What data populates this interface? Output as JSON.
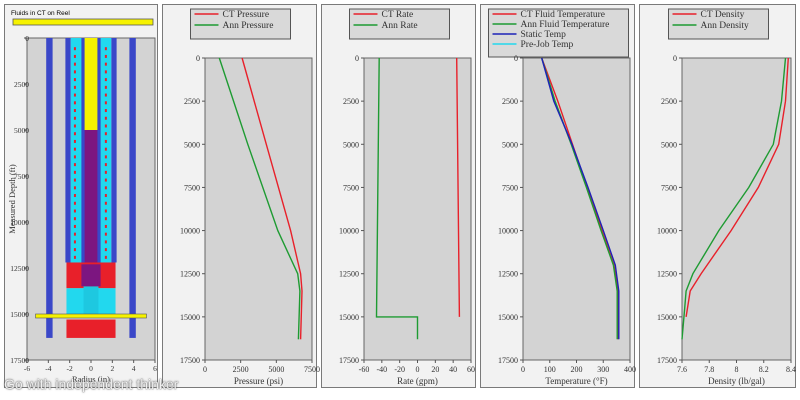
{
  "colors": {
    "plot_bg": "#d3d3d3",
    "panel_bg": "#f2f2f2",
    "red": "#e8202a",
    "green": "#1e9b32",
    "blue": "#1d22b8",
    "cyan": "#22d8ee",
    "yellow": "#f6f200",
    "purple": "#7c1680",
    "tubing_blue": "#3a47c8"
  },
  "reel": {
    "label": "Fluids in CT on Reel"
  },
  "wellbore": {
    "ylabel": "Measured Depth (ft)",
    "xlabel": "Radius (in)",
    "xlim": [
      -6,
      6
    ],
    "ylim": [
      0,
      17500
    ],
    "xticks": [
      "-6",
      "-4",
      "-2",
      "0",
      "2",
      "4",
      "6"
    ],
    "yticks": [
      "0",
      "2500",
      "5000",
      "7500",
      "10000",
      "12500",
      "15000",
      "17500"
    ]
  },
  "chart_data": [
    {
      "type": "line",
      "xlabel": "Pressure (psi)",
      "xlim": [
        0,
        7500
      ],
      "ylim": [
        0,
        17500
      ],
      "xticks": [
        "0",
        "2500",
        "5000",
        "7500"
      ],
      "yticks": [
        "0",
        "2500",
        "5000",
        "7500",
        "10000",
        "12500",
        "15000",
        "17500"
      ],
      "legend": "top",
      "series": [
        {
          "name": "CT Pressure",
          "color": "#e8202a",
          "points": [
            [
              2600,
              0
            ],
            [
              4300,
              5000
            ],
            [
              6000,
              10000
            ],
            [
              6700,
              12500
            ],
            [
              6800,
              13500
            ],
            [
              6700,
              16300
            ]
          ]
        },
        {
          "name": "Ann Pressure",
          "color": "#1e9b32",
          "points": [
            [
              1000,
              0
            ],
            [
              3000,
              5000
            ],
            [
              5100,
              10000
            ],
            [
              6500,
              12500
            ],
            [
              6650,
              13500
            ],
            [
              6550,
              16300
            ]
          ]
        }
      ]
    },
    {
      "type": "line",
      "xlabel": "Rate (gpm)",
      "xlim": [
        -60,
        60
      ],
      "ylim": [
        0,
        17500
      ],
      "xticks": [
        "-60",
        "-40",
        "-20",
        "0",
        "20",
        "40",
        "60"
      ],
      "yticks": [
        "0",
        "2500",
        "5000",
        "7500",
        "10000",
        "12500",
        "15000",
        "17500"
      ],
      "legend": "top",
      "series": [
        {
          "name": "CT Rate",
          "color": "#e8202a",
          "points": [
            [
              44,
              0
            ],
            [
              45,
              5000
            ],
            [
              46,
              10000
            ],
            [
              47,
              15000
            ]
          ]
        },
        {
          "name": "Ann Rate",
          "color": "#1e9b32",
          "points": [
            [
              -43,
              0
            ],
            [
              -44,
              5000
            ],
            [
              -45,
              10000
            ],
            [
              -46,
              15000
            ],
            [
              0,
              15000
            ],
            [
              0,
              16300
            ]
          ]
        }
      ]
    },
    {
      "type": "line",
      "xlabel": "Temperature (°F)",
      "xlim": [
        0,
        400
      ],
      "ylim": [
        0,
        17500
      ],
      "xticks": [
        "0",
        "100",
        "200",
        "300",
        "400"
      ],
      "yticks": [
        "0",
        "2500",
        "5000",
        "7500",
        "10000",
        "12500",
        "15000",
        "17500"
      ],
      "legend": "top",
      "series": [
        {
          "name": "CT Fluid Temperature",
          "color": "#e8202a",
          "points": [
            [
              70,
              0
            ],
            [
              130,
              2500
            ],
            [
              185,
              5000
            ],
            [
              240,
              7500
            ],
            [
              295,
              10000
            ],
            [
              340,
              12000
            ],
            [
              355,
              13500
            ],
            [
              355,
              16300
            ]
          ]
        },
        {
          "name": "Ann Fluid Temperature",
          "color": "#1e9b32",
          "points": [
            [
              70,
              0
            ],
            [
              120,
              2500
            ],
            [
              180,
              5000
            ],
            [
              237,
              7500
            ],
            [
              292,
              10000
            ],
            [
              338,
              12000
            ],
            [
              352,
              13500
            ],
            [
              352,
              16300
            ]
          ]
        },
        {
          "name": "Static Temp",
          "color": "#1d22b8",
          "points": [
            [
              70,
              0
            ],
            [
              115,
              2500
            ],
            [
              183,
              5000
            ],
            [
              243,
              7500
            ],
            [
              300,
              10000
            ],
            [
              345,
              12000
            ],
            [
              358,
              13500
            ],
            [
              358,
              16300
            ]
          ]
        },
        {
          "name": "Pre-Job Temp",
          "color": "#22d8ee",
          "points": []
        }
      ]
    },
    {
      "type": "line",
      "xlabel": "Density (lb/gal)",
      "xlim": [
        7.6,
        8.4
      ],
      "ylim": [
        0,
        17500
      ],
      "xticks": [
        "7.6",
        "7.8",
        "8",
        "8.2",
        "8.4"
      ],
      "yticks": [
        "0",
        "2500",
        "5000",
        "7500",
        "10000",
        "12500",
        "15000",
        "17500"
      ],
      "legend": "top",
      "series": [
        {
          "name": "CT Density",
          "color": "#e8202a",
          "points": [
            [
              8.38,
              0
            ],
            [
              8.36,
              2500
            ],
            [
              8.31,
              5000
            ],
            [
              8.16,
              7500
            ],
            [
              7.96,
              10000
            ],
            [
              7.74,
              12500
            ],
            [
              7.66,
              13500
            ],
            [
              7.63,
              15000
            ]
          ]
        },
        {
          "name": "Ann Density",
          "color": "#1e9b32",
          "points": [
            [
              8.36,
              0
            ],
            [
              8.33,
              2500
            ],
            [
              8.27,
              5000
            ],
            [
              8.09,
              7500
            ],
            [
              7.87,
              10000
            ],
            [
              7.68,
              12500
            ],
            [
              7.63,
              13500
            ],
            [
              7.62,
              14500
            ],
            [
              7.6,
              16300
            ]
          ]
        }
      ]
    }
  ],
  "watermark": "Go with independent thinker"
}
